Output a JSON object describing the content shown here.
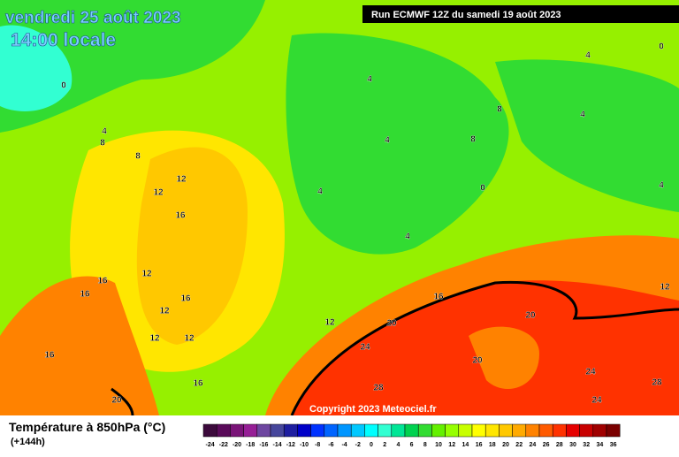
{
  "header": {
    "date": "vendredi 25 août 2023",
    "time": "14:00 locale",
    "run": "Run ECMWF 12Z du samedi 19 août 2023"
  },
  "map": {
    "contour_labels": [
      0,
      4,
      8,
      8,
      12,
      12,
      16,
      16,
      16,
      12,
      16,
      12,
      12,
      12,
      16,
      16,
      20,
      4,
      4,
      4,
      4,
      8,
      8,
      4,
      4,
      0,
      4,
      0,
      16,
      12,
      20,
      20,
      20,
      24,
      28,
      24,
      24,
      28,
      12
    ],
    "copyright": "Copyright 2023 Meteociel.fr"
  },
  "legend": {
    "title": "Température à 850hPa (°C)",
    "lead": "(+144h)",
    "ticks": [
      -24,
      -22,
      -20,
      -18,
      -16,
      -14,
      -12,
      -10,
      -8,
      -6,
      -4,
      -2,
      0,
      2,
      4,
      6,
      8,
      10,
      12,
      14,
      16,
      18,
      20,
      22,
      24,
      26,
      28,
      30,
      32,
      34,
      36
    ],
    "colors": [
      "#3c0a3c",
      "#5a0a5a",
      "#7a1478",
      "#961e96",
      "#6e46a0",
      "#46469b",
      "#1e1ea0",
      "#0000c8",
      "#0032ff",
      "#0064ff",
      "#0096ff",
      "#00c8ff",
      "#00ffff",
      "#32ffd2",
      "#00e696",
      "#00d250",
      "#32dc32",
      "#64f000",
      "#96ff00",
      "#c8ff00",
      "#ffff00",
      "#ffe600",
      "#ffc800",
      "#ffaa00",
      "#ff8200",
      "#ff5a00",
      "#ff3200",
      "#e60000",
      "#c80000",
      "#a00000",
      "#7a0000"
    ]
  }
}
